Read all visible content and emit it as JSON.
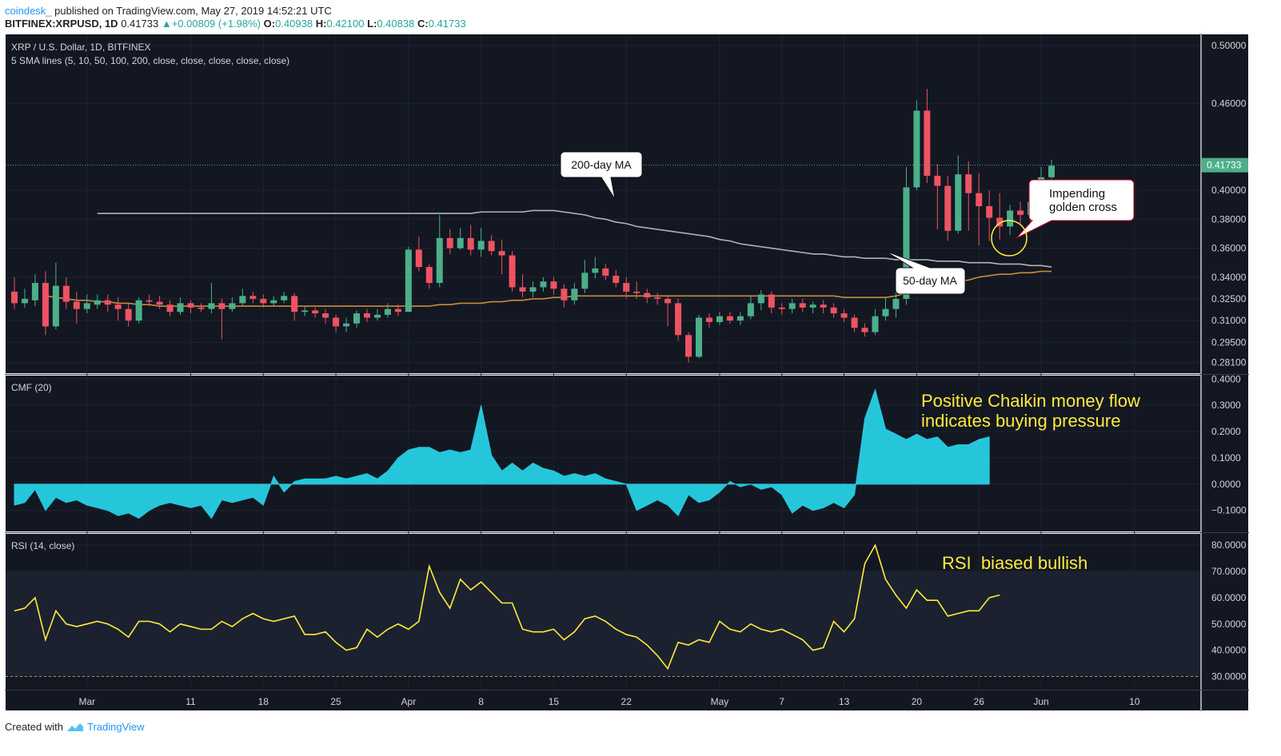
{
  "header": {
    "author": "coindesk_",
    "published": "published on TradingView.com, May 27, 2019 14:52:21 UTC",
    "symbol": "BITFINEX:XRPUSD, 1D",
    "last": "0.41733",
    "change": "+0.00809 (+1.98%)",
    "o_label": "O:",
    "o": "0.40938",
    "h_label": "H:",
    "h": "0.42100",
    "l_label": "L:",
    "l": "0.40838",
    "c_label": "C:",
    "c": "0.41733"
  },
  "footer": {
    "created_with": "Created with",
    "brand": "TradingView"
  },
  "colors": {
    "up": "#4caf8a",
    "down": "#ef5362",
    "bg": "#131722",
    "cmf": "#26c6da",
    "rsi": "#ffeb3b",
    "ma50": "#c98a3a",
    "ma200": "#b0b3bb",
    "annotation": "#ffeb3b"
  },
  "chart_data": [
    {
      "type": "candlestick",
      "title": "XRP / U.S. Dollar, 1D, BITFINEX",
      "subtitle": "5 SMA lines (5, 10, 50, 100, 200, close, close, close, close, close)",
      "ylim": [
        0.272,
        0.506
      ],
      "y_ticks": [
        "0.50000",
        "0.46000",
        "0.40000",
        "0.38000",
        "0.36000",
        "0.34000",
        "0.32500",
        "0.31000",
        "0.29500",
        "0.28100"
      ],
      "last_price_label": "0.41733",
      "x_ticks": [
        {
          "label": "Mar",
          "index": 7
        },
        {
          "label": "11",
          "index": 17
        },
        {
          "label": "18",
          "index": 24
        },
        {
          "label": "25",
          "index": 31
        },
        {
          "label": "Apr",
          "index": 38
        },
        {
          "label": "8",
          "index": 45
        },
        {
          "label": "15",
          "index": 52
        },
        {
          "label": "22",
          "index": 59
        },
        {
          "label": "May",
          "index": 68
        },
        {
          "label": "7",
          "index": 74
        },
        {
          "label": "13",
          "index": 80
        },
        {
          "label": "20",
          "index": 87
        },
        {
          "label": "26",
          "index": 93
        },
        {
          "label": "Jun",
          "index": 99
        },
        {
          "label": "10",
          "index": 108
        }
      ],
      "candles": [
        [
          0.33,
          0.322,
          0.34,
          0.318
        ],
        [
          0.322,
          0.325,
          0.332,
          0.319
        ],
        [
          0.324,
          0.336,
          0.342,
          0.32
        ],
        [
          0.336,
          0.306,
          0.344,
          0.3
        ],
        [
          0.306,
          0.334,
          0.35,
          0.304
        ],
        [
          0.334,
          0.323,
          0.34,
          0.318
        ],
        [
          0.323,
          0.318,
          0.33,
          0.308
        ],
        [
          0.318,
          0.322,
          0.328,
          0.315
        ],
        [
          0.321,
          0.324,
          0.328,
          0.318
        ],
        [
          0.324,
          0.321,
          0.328,
          0.316
        ],
        [
          0.321,
          0.318,
          0.326,
          0.31
        ],
        [
          0.318,
          0.31,
          0.322,
          0.306
        ],
        [
          0.31,
          0.324,
          0.326,
          0.308
        ],
        [
          0.324,
          0.323,
          0.328,
          0.32
        ],
        [
          0.323,
          0.321,
          0.327,
          0.318
        ],
        [
          0.321,
          0.316,
          0.324,
          0.313
        ],
        [
          0.316,
          0.322,
          0.326,
          0.314
        ],
        [
          0.322,
          0.319,
          0.324,
          0.315
        ],
        [
          0.319,
          0.318,
          0.322,
          0.316
        ],
        [
          0.318,
          0.322,
          0.336,
          0.315
        ],
        [
          0.322,
          0.318,
          0.325,
          0.297
        ],
        [
          0.318,
          0.322,
          0.326,
          0.316
        ],
        [
          0.322,
          0.327,
          0.332,
          0.32
        ],
        [
          0.327,
          0.325,
          0.33,
          0.322
        ],
        [
          0.325,
          0.322,
          0.328,
          0.319
        ],
        [
          0.322,
          0.324,
          0.327,
          0.32
        ],
        [
          0.324,
          0.327,
          0.33,
          0.322
        ],
        [
          0.327,
          0.316,
          0.329,
          0.31
        ],
        [
          0.316,
          0.317,
          0.32,
          0.313
        ],
        [
          0.317,
          0.315,
          0.319,
          0.312
        ],
        [
          0.315,
          0.312,
          0.318,
          0.308
        ],
        [
          0.312,
          0.306,
          0.314,
          0.302
        ],
        [
          0.306,
          0.308,
          0.312,
          0.302
        ],
        [
          0.308,
          0.315,
          0.317,
          0.305
        ],
        [
          0.315,
          0.312,
          0.318,
          0.309
        ],
        [
          0.312,
          0.314,
          0.318,
          0.31
        ],
        [
          0.314,
          0.318,
          0.322,
          0.312
        ],
        [
          0.318,
          0.316,
          0.321,
          0.313
        ],
        [
          0.316,
          0.359,
          0.361,
          0.316
        ],
        [
          0.359,
          0.347,
          0.368,
          0.344
        ],
        [
          0.347,
          0.336,
          0.349,
          0.332
        ],
        [
          0.336,
          0.367,
          0.383,
          0.333
        ],
        [
          0.367,
          0.36,
          0.373,
          0.356
        ],
        [
          0.36,
          0.367,
          0.374,
          0.359
        ],
        [
          0.367,
          0.359,
          0.376,
          0.355
        ],
        [
          0.359,
          0.365,
          0.374,
          0.354
        ],
        [
          0.365,
          0.358,
          0.369,
          0.355
        ],
        [
          0.358,
          0.355,
          0.366,
          0.342
        ],
        [
          0.355,
          0.333,
          0.358,
          0.33
        ],
        [
          0.333,
          0.33,
          0.342,
          0.326
        ],
        [
          0.33,
          0.333,
          0.337,
          0.326
        ],
        [
          0.333,
          0.337,
          0.34,
          0.33
        ],
        [
          0.337,
          0.332,
          0.34,
          0.328
        ],
        [
          0.332,
          0.324,
          0.335,
          0.319
        ],
        [
          0.324,
          0.332,
          0.336,
          0.321
        ],
        [
          0.332,
          0.343,
          0.352,
          0.329
        ],
        [
          0.343,
          0.346,
          0.354,
          0.339
        ],
        [
          0.346,
          0.341,
          0.349,
          0.338
        ],
        [
          0.341,
          0.336,
          0.345,
          0.333
        ],
        [
          0.336,
          0.33,
          0.34,
          0.325
        ],
        [
          0.33,
          0.329,
          0.337,
          0.325
        ],
        [
          0.329,
          0.326,
          0.332,
          0.322
        ],
        [
          0.326,
          0.325,
          0.329,
          0.321
        ],
        [
          0.325,
          0.322,
          0.327,
          0.306
        ],
        [
          0.322,
          0.3,
          0.325,
          0.296
        ],
        [
          0.3,
          0.285,
          0.302,
          0.281
        ],
        [
          0.285,
          0.312,
          0.314,
          0.284
        ],
        [
          0.312,
          0.309,
          0.315,
          0.305
        ],
        [
          0.309,
          0.313,
          0.316,
          0.307
        ],
        [
          0.313,
          0.31,
          0.316,
          0.308
        ],
        [
          0.31,
          0.313,
          0.316,
          0.307
        ],
        [
          0.313,
          0.322,
          0.327,
          0.311
        ],
        [
          0.322,
          0.328,
          0.331,
          0.317
        ],
        [
          0.328,
          0.319,
          0.33,
          0.315
        ],
        [
          0.319,
          0.318,
          0.322,
          0.314
        ],
        [
          0.318,
          0.322,
          0.325,
          0.315
        ],
        [
          0.322,
          0.319,
          0.325,
          0.316
        ],
        [
          0.319,
          0.321,
          0.323,
          0.315
        ],
        [
          0.321,
          0.319,
          0.324,
          0.315
        ],
        [
          0.319,
          0.315,
          0.322,
          0.312
        ],
        [
          0.315,
          0.312,
          0.318,
          0.309
        ],
        [
          0.312,
          0.305,
          0.314,
          0.302
        ],
        [
          0.305,
          0.302,
          0.308,
          0.299
        ],
        [
          0.302,
          0.313,
          0.318,
          0.3
        ],
        [
          0.313,
          0.318,
          0.326,
          0.31
        ],
        [
          0.318,
          0.325,
          0.336,
          0.312
        ],
        [
          0.325,
          0.402,
          0.416,
          0.321
        ],
        [
          0.402,
          0.455,
          0.462,
          0.4
        ],
        [
          0.455,
          0.41,
          0.47,
          0.405
        ],
        [
          0.41,
          0.403,
          0.418,
          0.373
        ],
        [
          0.403,
          0.372,
          0.41,
          0.365
        ],
        [
          0.372,
          0.411,
          0.424,
          0.37
        ],
        [
          0.411,
          0.398,
          0.42,
          0.372
        ],
        [
          0.398,
          0.389,
          0.412,
          0.362
        ],
        [
          0.389,
          0.381,
          0.4,
          0.365
        ],
        [
          0.381,
          0.375,
          0.398,
          0.366
        ],
        [
          0.375,
          0.386,
          0.39,
          0.369
        ],
        [
          0.386,
          0.383,
          0.392,
          0.377
        ],
        [
          0.383,
          0.392,
          0.399,
          0.378
        ],
        [
          0.392,
          0.409,
          0.416,
          0.381
        ],
        [
          0.409,
          0.417,
          0.421,
          0.408
        ]
      ],
      "series": [
        {
          "name": "200-day MA",
          "values": [
            0.384,
            0.384,
            0.384,
            0.384,
            0.384,
            0.384,
            0.384,
            0.384,
            0.384,
            0.384,
            0.384,
            0.384,
            0.384,
            0.384,
            0.384,
            0.384,
            0.384,
            0.384,
            0.384,
            0.384,
            0.384,
            0.384,
            0.384,
            0.384,
            0.384,
            0.384,
            0.384,
            0.384,
            0.384,
            0.384,
            0.384,
            0.384,
            0.384,
            0.384,
            0.384,
            0.384,
            0.384,
            0.385,
            0.385,
            0.385,
            0.385,
            0.385,
            0.386,
            0.386,
            0.386,
            0.385,
            0.384,
            0.383,
            0.381,
            0.38,
            0.378,
            0.377,
            0.375,
            0.374,
            0.373,
            0.372,
            0.371,
            0.37,
            0.369,
            0.368,
            0.366,
            0.365,
            0.363,
            0.362,
            0.361,
            0.36,
            0.359,
            0.358,
            0.357,
            0.356,
            0.356,
            0.355,
            0.354,
            0.354,
            0.353,
            0.353,
            0.353,
            0.352,
            0.352,
            0.352,
            0.352,
            0.351,
            0.351,
            0.351,
            0.35,
            0.35,
            0.35,
            0.349,
            0.349,
            0.349,
            0.348,
            0.348,
            0.347
          ]
        },
        {
          "name": "50-day MA",
          "values": [
            0.327,
            0.326,
            0.325,
            0.324,
            0.324,
            0.323,
            0.323,
            0.322,
            0.322,
            0.321,
            0.321,
            0.32,
            0.32,
            0.32,
            0.32,
            0.32,
            0.32,
            0.32,
            0.32,
            0.32,
            0.32,
            0.32,
            0.32,
            0.32,
            0.32,
            0.32,
            0.32,
            0.32,
            0.32,
            0.32,
            0.32,
            0.32,
            0.32,
            0.32,
            0.32,
            0.32,
            0.32,
            0.32,
            0.321,
            0.321,
            0.322,
            0.322,
            0.322,
            0.323,
            0.323,
            0.324,
            0.324,
            0.325,
            0.325,
            0.326,
            0.326,
            0.327,
            0.327,
            0.327,
            0.327,
            0.327,
            0.327,
            0.327,
            0.327,
            0.327,
            0.327,
            0.327,
            0.327,
            0.327,
            0.327,
            0.327,
            0.327,
            0.327,
            0.327,
            0.327,
            0.327,
            0.327,
            0.327,
            0.327,
            0.327,
            0.327,
            0.327,
            0.326,
            0.326,
            0.326,
            0.326,
            0.326,
            0.327,
            0.329,
            0.332,
            0.333,
            0.334,
            0.336,
            0.337,
            0.338,
            0.34,
            0.341,
            0.342,
            0.342,
            0.343,
            0.343,
            0.344,
            0.344
          ]
        }
      ],
      "annotations": [
        {
          "text": "200-day MA"
        },
        {
          "text": "50-day MA"
        },
        {
          "text": "Impending golden cross"
        }
      ]
    },
    {
      "type": "area",
      "title": "CMF (20)",
      "ylim": [
        -0.18,
        0.41
      ],
      "y_ticks": [
        "0.4000",
        "0.3000",
        "0.2000",
        "0.1000",
        "0.0000",
        "−0.1000"
      ],
      "values": [
        -0.08,
        -0.07,
        -0.02,
        -0.1,
        -0.05,
        -0.07,
        -0.06,
        -0.08,
        -0.09,
        -0.1,
        -0.12,
        -0.11,
        -0.13,
        -0.1,
        -0.08,
        -0.07,
        -0.08,
        -0.09,
        -0.08,
        -0.13,
        -0.06,
        -0.07,
        -0.06,
        -0.05,
        -0.08,
        0.03,
        -0.03,
        0.01,
        0.02,
        0.02,
        0.02,
        0.03,
        0.02,
        0.03,
        0.04,
        0.02,
        0.05,
        0.1,
        0.13,
        0.14,
        0.14,
        0.12,
        0.13,
        0.12,
        0.13,
        0.3,
        0.11,
        0.05,
        0.08,
        0.05,
        0.08,
        0.06,
        0.05,
        0.03,
        0.04,
        0.03,
        0.04,
        0.02,
        0.01,
        0.0,
        -0.1,
        -0.08,
        -0.06,
        -0.08,
        -0.12,
        -0.04,
        -0.07,
        -0.06,
        -0.03,
        0.01,
        -0.01,
        0.0,
        -0.02,
        -0.01,
        -0.04,
        -0.11,
        -0.08,
        -0.1,
        -0.09,
        -0.07,
        -0.09,
        -0.04,
        0.25,
        0.36,
        0.21,
        0.19,
        0.17,
        0.19,
        0.17,
        0.18,
        0.14,
        0.15,
        0.15,
        0.17,
        0.18
      ],
      "annotation": "Positive Chaikin money flow indicates buying pressure"
    },
    {
      "type": "line",
      "title": "RSI (14, close)",
      "ylim": [
        25,
        84
      ],
      "y_ticks": [
        "80.0000",
        "70.0000",
        "60.0000",
        "50.0000",
        "40.0000",
        "30.0000"
      ],
      "band": [
        30,
        70
      ],
      "values": [
        55,
        56,
        60,
        44,
        55,
        50,
        49,
        50,
        51,
        50,
        48,
        45,
        51,
        51,
        50,
        47,
        50,
        49,
        48,
        48,
        51,
        49,
        52,
        54,
        52,
        51,
        52,
        53,
        46,
        46,
        47,
        43,
        40,
        41,
        48,
        45,
        48,
        50,
        48,
        51,
        72,
        62,
        56,
        67,
        63,
        66,
        62,
        58,
        58,
        48,
        47,
        47,
        48,
        44,
        47,
        52,
        53,
        51,
        48,
        46,
        45,
        42,
        38,
        33,
        43,
        42,
        44,
        43,
        51,
        48,
        47,
        50,
        48,
        47,
        48,
        46,
        44,
        40,
        41,
        51,
        47,
        52,
        73,
        80,
        67,
        61,
        56,
        63,
        59,
        59,
        53,
        54,
        55,
        55,
        60,
        61
      ],
      "annotation": "RSI  biased bullish"
    }
  ]
}
